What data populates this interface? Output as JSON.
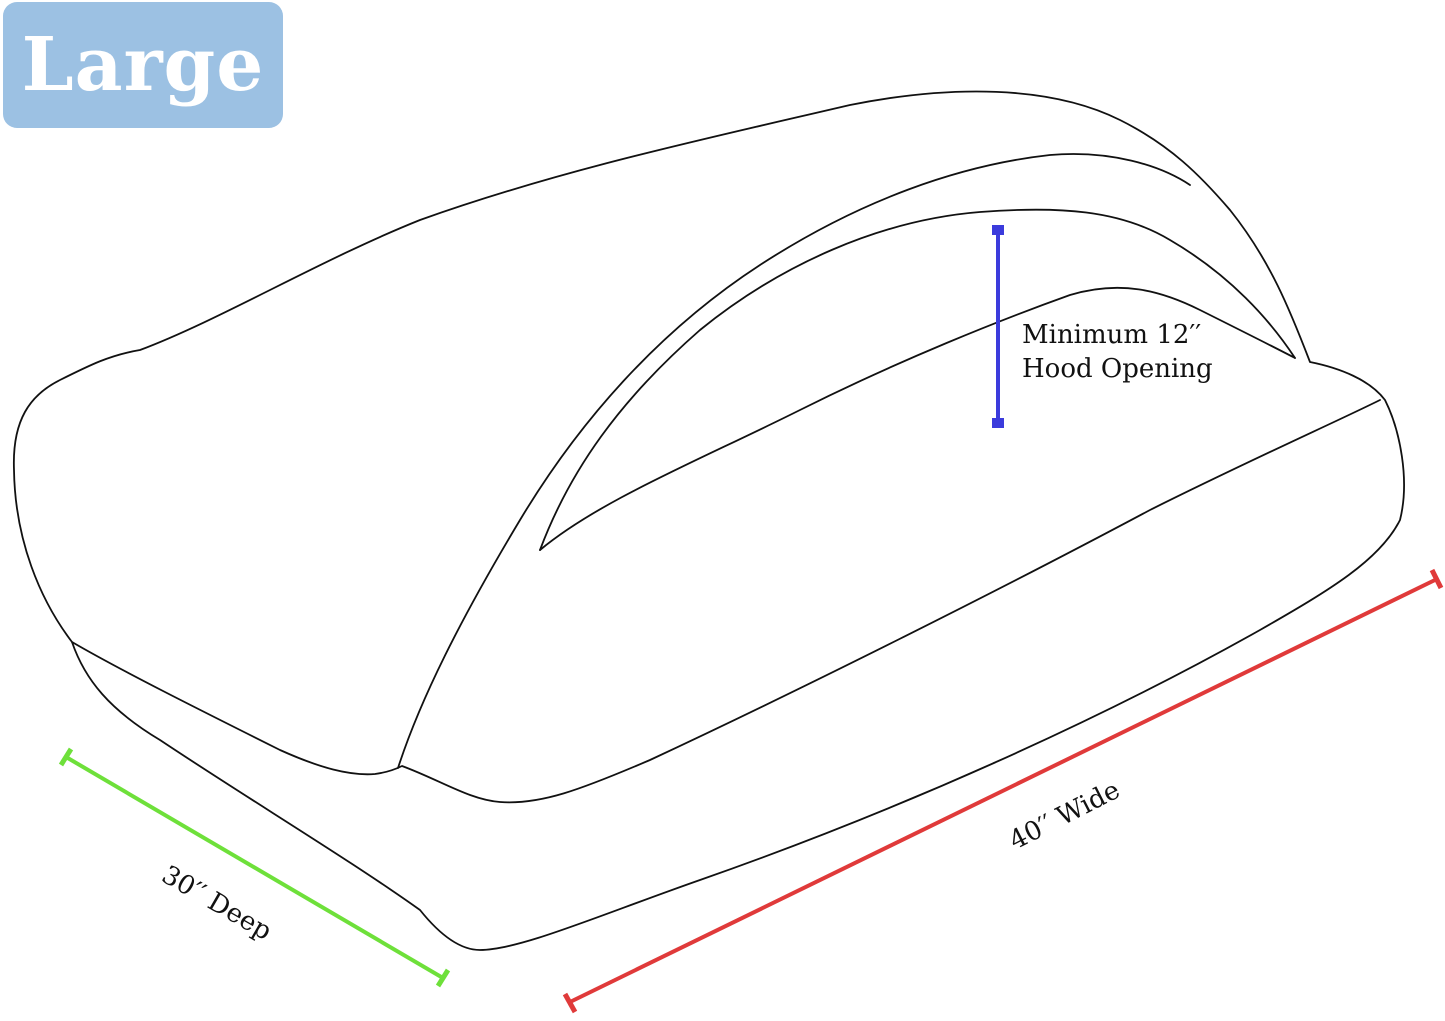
{
  "size_badge": {
    "label": "Large",
    "color": "#9cc1e3"
  },
  "dimensions": {
    "hood": {
      "line1": "Minimum 12′′",
      "line2": "Hood Opening",
      "color": "#3b3bdc"
    },
    "depth": {
      "label": "30′′ Deep",
      "color": "#6ee03a"
    },
    "width": {
      "label": "40′′ Wide",
      "color": "#e03a3a"
    }
  }
}
